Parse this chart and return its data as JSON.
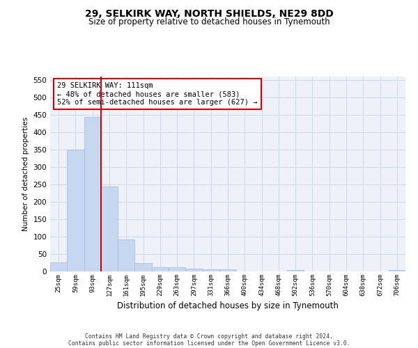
{
  "title": "29, SELKIRK WAY, NORTH SHIELDS, NE29 8DD",
  "subtitle": "Size of property relative to detached houses in Tynemouth",
  "xlabel": "Distribution of detached houses by size in Tynemouth",
  "ylabel": "Number of detached properties",
  "categories": [
    "25sqm",
    "59sqm",
    "93sqm",
    "127sqm",
    "161sqm",
    "195sqm",
    "229sqm",
    "263sqm",
    "297sqm",
    "331sqm",
    "366sqm",
    "400sqm",
    "434sqm",
    "468sqm",
    "502sqm",
    "536sqm",
    "570sqm",
    "604sqm",
    "638sqm",
    "672sqm",
    "706sqm"
  ],
  "values": [
    27,
    350,
    445,
    245,
    92,
    25,
    13,
    13,
    9,
    6,
    6,
    0,
    0,
    0,
    5,
    0,
    0,
    0,
    0,
    0,
    5
  ],
  "bar_color": "#c5d8f0",
  "bar_edge_color": "#a0b8d8",
  "red_line_x": 2.5,
  "annotation_text": "29 SELKIRK WAY: 111sqm\n← 48% of detached houses are smaller (583)\n52% of semi-detached houses are larger (627) →",
  "annotation_box_color": "#ffffff",
  "annotation_box_edge": "#cc0000",
  "grid_color": "#d0d8e8",
  "background_color": "#eef2f8",
  "ylim": [
    0,
    560
  ],
  "yticks": [
    0,
    50,
    100,
    150,
    200,
    250,
    300,
    350,
    400,
    450,
    500,
    550
  ],
  "footer_line1": "Contains HM Land Registry data © Crown copyright and database right 2024.",
  "footer_line2": "Contains public sector information licensed under the Open Government Licence v3.0."
}
